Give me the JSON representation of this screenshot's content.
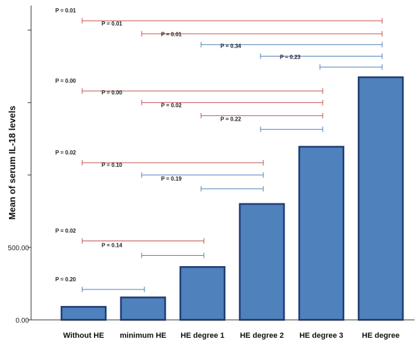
{
  "chart_data": {
    "type": "bar",
    "ylabel": "Mean of serum IL-18 levels",
    "xlabel": "",
    "categories": [
      "Without HE",
      "minimum HE",
      "HE degree 1",
      "HE degree 2",
      "HE degree 3",
      "HE degree"
    ],
    "values": [
      90,
      155,
      365,
      800,
      1195,
      1675
    ],
    "ylim": [
      0,
      2170
    ],
    "yticks": [
      {
        "value": 0,
        "label": "0.00"
      },
      {
        "value": 500,
        "label": "500.00"
      },
      {
        "value": 1000,
        "label": ""
      },
      {
        "value": 1500,
        "label": ""
      },
      {
        "value": 2000,
        "label": ""
      }
    ],
    "grid": false,
    "bar_color": "#4f81bd",
    "bar_edge_color": "#1f3d73",
    "comparisons": [
      {
        "from": 0,
        "to": 5,
        "p": "P = 0.01",
        "level": 2065,
        "color": "#c0504d"
      },
      {
        "from": 1,
        "to": 5,
        "p": "P = 0.01",
        "level": 1975,
        "color": "#c0504d"
      },
      {
        "from": 2,
        "to": 5,
        "p": "P = 0.01",
        "level": 1900,
        "color": "#4f81bd"
      },
      {
        "from": 3,
        "to": 5,
        "p": "P = 0.34",
        "level": 1820,
        "color": "#4f81bd"
      },
      {
        "from": 4,
        "to": 5,
        "p": "P = 0.23",
        "level": 1745,
        "color": "#4f81bd"
      },
      {
        "from": 0,
        "to": 4,
        "p": "P = 0.00",
        "level": 1580,
        "color": "#c0504d"
      },
      {
        "from": 1,
        "to": 4,
        "p": "P = 0.00",
        "level": 1500,
        "color": "#c0504d"
      },
      {
        "from": 2,
        "to": 4,
        "p": "P = 0.02",
        "level": 1410,
        "color": "#c0504d"
      },
      {
        "from": 3,
        "to": 4,
        "p": "P = 0.22",
        "level": 1315,
        "color": "#4f81bd"
      },
      {
        "from": 0,
        "to": 3,
        "p": "P = 0.02",
        "level": 1085,
        "color": "#c0504d"
      },
      {
        "from": 1,
        "to": 3,
        "p": "P = 0.10",
        "level": 1000,
        "color": "#4f81bd"
      },
      {
        "from": 2,
        "to": 3,
        "p": "P = 0.19",
        "level": 905,
        "color": "#4f81bd"
      },
      {
        "from": 0,
        "to": 2,
        "p": "P = 0.02",
        "level": 545,
        "color": "#c0504d"
      },
      {
        "from": 1,
        "to": 2,
        "p": "P = 0.14",
        "level": 445,
        "color": "#4f81bd"
      },
      {
        "from": 0,
        "to": 1,
        "p": "P = 0.20",
        "level": 210,
        "color": "#4f81bd"
      }
    ]
  }
}
